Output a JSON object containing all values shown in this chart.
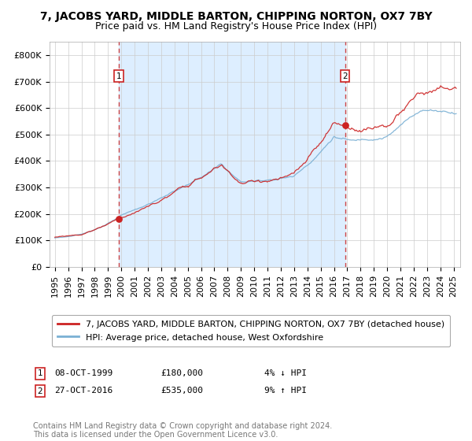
{
  "title": "7, JACOBS YARD, MIDDLE BARTON, CHIPPING NORTON, OX7 7BY",
  "subtitle": "Price paid vs. HM Land Registry's House Price Index (HPI)",
  "ylim": [
    0,
    850000
  ],
  "yticks": [
    0,
    100000,
    200000,
    300000,
    400000,
    500000,
    600000,
    700000,
    800000
  ],
  "ytick_labels": [
    "£0",
    "£100K",
    "£200K",
    "£300K",
    "£400K",
    "£500K",
    "£600K",
    "£700K",
    "£800K"
  ],
  "transaction1_year": 1999.79,
  "transaction1_price": 180000,
  "transaction2_year": 2016.83,
  "transaction2_price": 535000,
  "legend_line1": "7, JACOBS YARD, MIDDLE BARTON, CHIPPING NORTON, OX7 7BY (detached house)",
  "legend_line2": "HPI: Average price, detached house, West Oxfordshire",
  "footer": "Contains HM Land Registry data © Crown copyright and database right 2024.\nThis data is licensed under the Open Government Licence v3.0.",
  "line_color_red": "#cc2222",
  "line_color_blue": "#7ab0d4",
  "dashed_color": "#cc4444",
  "background_color": "#ffffff",
  "fill_color": "#ddeeff",
  "grid_color": "#cccccc",
  "title_fontsize": 10,
  "subtitle_fontsize": 9,
  "axis_fontsize": 8,
  "legend_fontsize": 8,
  "footer_fontsize": 7,
  "xstart": 1995.0,
  "xend": 2025.2
}
